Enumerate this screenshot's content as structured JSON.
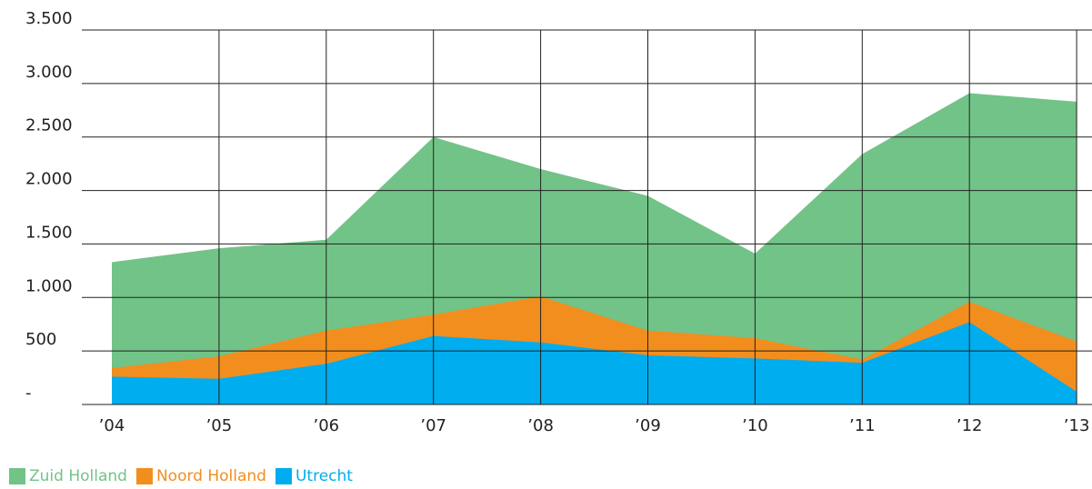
{
  "chart_data": {
    "type": "area",
    "categories": [
      "’04",
      "’05",
      "’06",
      "’07",
      "’08",
      "’09",
      "’10",
      "’11",
      "’12",
      "’13"
    ],
    "series": [
      {
        "name": "Zuid Holland",
        "color": "#72c387",
        "values": [
          1330,
          1460,
          1540,
          2500,
          2200,
          1950,
          1410,
          2340,
          2910,
          2830
        ]
      },
      {
        "name": "Noord Holland",
        "color": "#f28e1e",
        "values": [
          340,
          450,
          690,
          840,
          1010,
          690,
          620,
          420,
          960,
          590
        ]
      },
      {
        "name": "Utrecht",
        "color": "#00adef",
        "values": [
          260,
          240,
          380,
          640,
          580,
          460,
          430,
          390,
          770,
          120
        ]
      }
    ],
    "ylim": [
      0,
      3500
    ],
    "yticks": [
      {
        "value": 0,
        "label": "-"
      },
      500,
      {
        "value": 1000,
        "label": "1.000"
      },
      {
        "value": 1500,
        "label": "1.500"
      },
      {
        "value": 2000,
        "label": "2.000"
      },
      {
        "value": 2500,
        "label": "2.500"
      },
      {
        "value": 3000,
        "label": "3.000"
      },
      {
        "value": 3500,
        "label": "3.500"
      }
    ],
    "grid": true
  }
}
